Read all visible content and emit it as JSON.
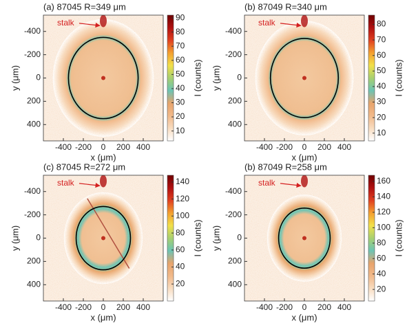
{
  "chart_data": [
    {
      "type": "heatmap",
      "title": "(a) 87045 R=349 μm",
      "circle_radius": 349,
      "xlabel": "x (μm)",
      "ylabel": "y (μm)",
      "xlim": [
        -600,
        600
      ],
      "ylim": [
        -540,
        540
      ],
      "y_inverted": true,
      "xticks": [
        -400,
        -200,
        0,
        200,
        400
      ],
      "yticks": [
        -400,
        -200,
        0,
        200,
        400
      ],
      "annotation": "stalk",
      "colorbar": {
        "label": "I (counts)",
        "lim": [
          3,
          92
        ],
        "ticks": [
          10,
          20,
          30,
          40,
          50,
          60,
          70,
          80,
          90
        ]
      },
      "colormap": [
        "#ffffff",
        "#f8dcc0",
        "#f1b98a",
        "#e8a46c",
        "#6cc4b4",
        "#a8d070",
        "#f2e04a",
        "#f4a030",
        "#e04020",
        "#b01010",
        "#700000"
      ]
    },
    {
      "type": "heatmap",
      "title": "(b) 87049 R=340 μm",
      "circle_radius": 340,
      "xlabel": "x (μm)",
      "ylabel": "y (μm)",
      "xlim": [
        -600,
        600
      ],
      "ylim": [
        -540,
        540
      ],
      "y_inverted": true,
      "xticks": [
        -400,
        -200,
        0,
        200,
        400
      ],
      "yticks": [
        -400,
        -200,
        0,
        200,
        400
      ],
      "annotation": "stalk",
      "colorbar": {
        "label": "I (counts)",
        "lim": [
          5,
          86
        ],
        "ticks": [
          10,
          20,
          30,
          40,
          50,
          60,
          70,
          80
        ]
      },
      "colormap": [
        "#ffffff",
        "#f8dcc0",
        "#f1b98a",
        "#e8a46c",
        "#6cc4b4",
        "#a8d070",
        "#f2e04a",
        "#f4a030",
        "#e04020",
        "#b01010",
        "#700000"
      ]
    },
    {
      "type": "heatmap",
      "title": "(c) 87045 R=272 μm",
      "circle_radius": 272,
      "xlabel": "x (μm)",
      "ylabel": "y (μm)",
      "xlim": [
        -600,
        600
      ],
      "ylim": [
        -540,
        540
      ],
      "y_inverted": true,
      "xticks": [
        -400,
        -200,
        0,
        200,
        400
      ],
      "yticks": [
        -400,
        -200,
        0,
        200,
        400
      ],
      "annotation": "stalk",
      "colorbar": {
        "label": "I (counts)",
        "lim": [
          0,
          148
        ],
        "ticks": [
          20,
          40,
          60,
          80,
          100,
          120,
          140
        ]
      },
      "colormap": [
        "#ffffff",
        "#f8dcc0",
        "#f1b98a",
        "#e8a46c",
        "#6cc4b4",
        "#a8d070",
        "#f2e04a",
        "#f4a030",
        "#e04020",
        "#b01010",
        "#700000"
      ]
    },
    {
      "type": "heatmap",
      "title": "(b) 87049 R=258 μm",
      "circle_radius": 258,
      "xlabel": "x (μm)",
      "ylabel": "y (μm)",
      "xlim": [
        -600,
        600
      ],
      "ylim": [
        -540,
        540
      ],
      "y_inverted": true,
      "xticks": [
        -400,
        -200,
        0,
        200,
        400
      ],
      "yticks": [
        -400,
        -200,
        0,
        200,
        400
      ],
      "annotation": "stalk",
      "colorbar": {
        "label": "I (counts)",
        "lim": [
          5,
          168
        ],
        "ticks": [
          20,
          40,
          60,
          80,
          100,
          120,
          140,
          160
        ]
      },
      "colormap": [
        "#ffffff",
        "#f8dcc0",
        "#f1b98a",
        "#e8a46c",
        "#6cc4b4",
        "#a8d070",
        "#f2e04a",
        "#f4a030",
        "#e04020",
        "#b01010",
        "#700000"
      ]
    }
  ]
}
